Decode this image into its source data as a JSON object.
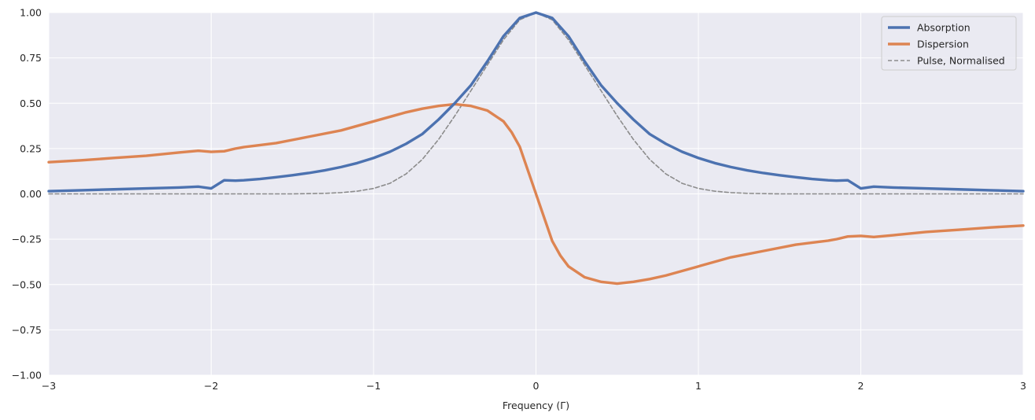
{
  "chart_data": {
    "type": "line",
    "title": "",
    "xlabel": "Frequency (Γ)",
    "ylabel": "",
    "xlim": [
      -3,
      3
    ],
    "ylim": [
      -1,
      1
    ],
    "xticks": [
      -3,
      -2,
      -1,
      0,
      1,
      2,
      3
    ],
    "xtick_labels": [
      "−3",
      "−2",
      "−1",
      "0",
      "1",
      "2",
      "3"
    ],
    "yticks": [
      -1,
      -0.75,
      -0.5,
      -0.25,
      0,
      0.25,
      0.5,
      0.75,
      1
    ],
    "ytick_labels": [
      "−1.00",
      "−0.75",
      "−0.50",
      "−0.25",
      "0.00",
      "0.25",
      "0.50",
      "0.75",
      "1.00"
    ],
    "grid": true,
    "legend_position": "top-right",
    "background": "#eaeaf2",
    "series": [
      {
        "name": "Absorption",
        "color": "#4c72b0",
        "style": "solid",
        "x": [
          -3,
          -2.8,
          -2.6,
          -2.4,
          -2.2,
          -2.08,
          -2.0,
          -1.92,
          -1.85,
          -1.8,
          -1.7,
          -1.6,
          -1.5,
          -1.4,
          -1.3,
          -1.2,
          -1.1,
          -1.0,
          -0.9,
          -0.8,
          -0.7,
          -0.6,
          -0.5,
          -0.4,
          -0.3,
          -0.2,
          -0.1,
          0,
          0.1,
          0.2,
          0.3,
          0.4,
          0.5,
          0.6,
          0.7,
          0.8,
          0.9,
          1.0,
          1.1,
          1.2,
          1.3,
          1.4,
          1.5,
          1.6,
          1.7,
          1.8,
          1.85,
          1.92,
          2.0,
          2.08,
          2.2,
          2.4,
          2.6,
          2.8,
          3.0
        ],
        "y": [
          0.015,
          0.02,
          0.025,
          0.03,
          0.035,
          0.04,
          0.03,
          0.075,
          0.073,
          0.075,
          0.082,
          0.092,
          0.103,
          0.115,
          0.13,
          0.148,
          0.17,
          0.198,
          0.232,
          0.276,
          0.33,
          0.41,
          0.5,
          0.6,
          0.73,
          0.87,
          0.97,
          1.0,
          0.97,
          0.87,
          0.73,
          0.6,
          0.5,
          0.41,
          0.33,
          0.276,
          0.232,
          0.198,
          0.17,
          0.148,
          0.13,
          0.115,
          0.103,
          0.092,
          0.082,
          0.075,
          0.073,
          0.075,
          0.03,
          0.04,
          0.035,
          0.03,
          0.025,
          0.02,
          0.015
        ]
      },
      {
        "name": "Dispersion",
        "color": "#dd8452",
        "style": "solid",
        "x": [
          -3,
          -2.8,
          -2.6,
          -2.4,
          -2.2,
          -2.08,
          -2.0,
          -1.92,
          -1.85,
          -1.8,
          -1.6,
          -1.4,
          -1.2,
          -1.0,
          -0.8,
          -0.7,
          -0.6,
          -0.5,
          -0.4,
          -0.3,
          -0.2,
          -0.15,
          -0.1,
          0,
          0.1,
          0.15,
          0.2,
          0.3,
          0.4,
          0.5,
          0.6,
          0.7,
          0.8,
          1.0,
          1.2,
          1.4,
          1.6,
          1.8,
          1.85,
          1.92,
          2.0,
          2.08,
          2.2,
          2.4,
          2.6,
          2.8,
          3.0
        ],
        "y": [
          0.175,
          0.185,
          0.198,
          0.21,
          0.228,
          0.238,
          0.232,
          0.235,
          0.25,
          0.258,
          0.28,
          0.315,
          0.35,
          0.4,
          0.45,
          0.47,
          0.485,
          0.495,
          0.485,
          0.46,
          0.4,
          0.34,
          0.26,
          0.0,
          -0.26,
          -0.34,
          -0.4,
          -0.46,
          -0.485,
          -0.495,
          -0.485,
          -0.47,
          -0.45,
          -0.4,
          -0.35,
          -0.315,
          -0.28,
          -0.258,
          -0.25,
          -0.235,
          -0.232,
          -0.238,
          -0.228,
          -0.21,
          -0.198,
          -0.185,
          -0.175
        ]
      },
      {
        "name": "Pulse, Normalised",
        "color": "#8c8c8c",
        "style": "dashed",
        "x": [
          -3,
          -2,
          -1.5,
          -1.3,
          -1.2,
          -1.1,
          -1.0,
          -0.9,
          -0.8,
          -0.7,
          -0.6,
          -0.5,
          -0.4,
          -0.3,
          -0.2,
          -0.1,
          0,
          0.1,
          0.2,
          0.3,
          0.4,
          0.5,
          0.6,
          0.7,
          0.8,
          0.9,
          1.0,
          1.1,
          1.2,
          1.3,
          1.5,
          2,
          3
        ],
        "y": [
          0.0,
          0.0,
          0.0,
          0.003,
          0.007,
          0.015,
          0.03,
          0.058,
          0.11,
          0.19,
          0.3,
          0.43,
          0.57,
          0.71,
          0.85,
          0.96,
          1.0,
          0.96,
          0.85,
          0.71,
          0.57,
          0.43,
          0.3,
          0.19,
          0.11,
          0.058,
          0.03,
          0.015,
          0.007,
          0.003,
          0.0,
          0.0,
          0.0
        ]
      }
    ]
  }
}
